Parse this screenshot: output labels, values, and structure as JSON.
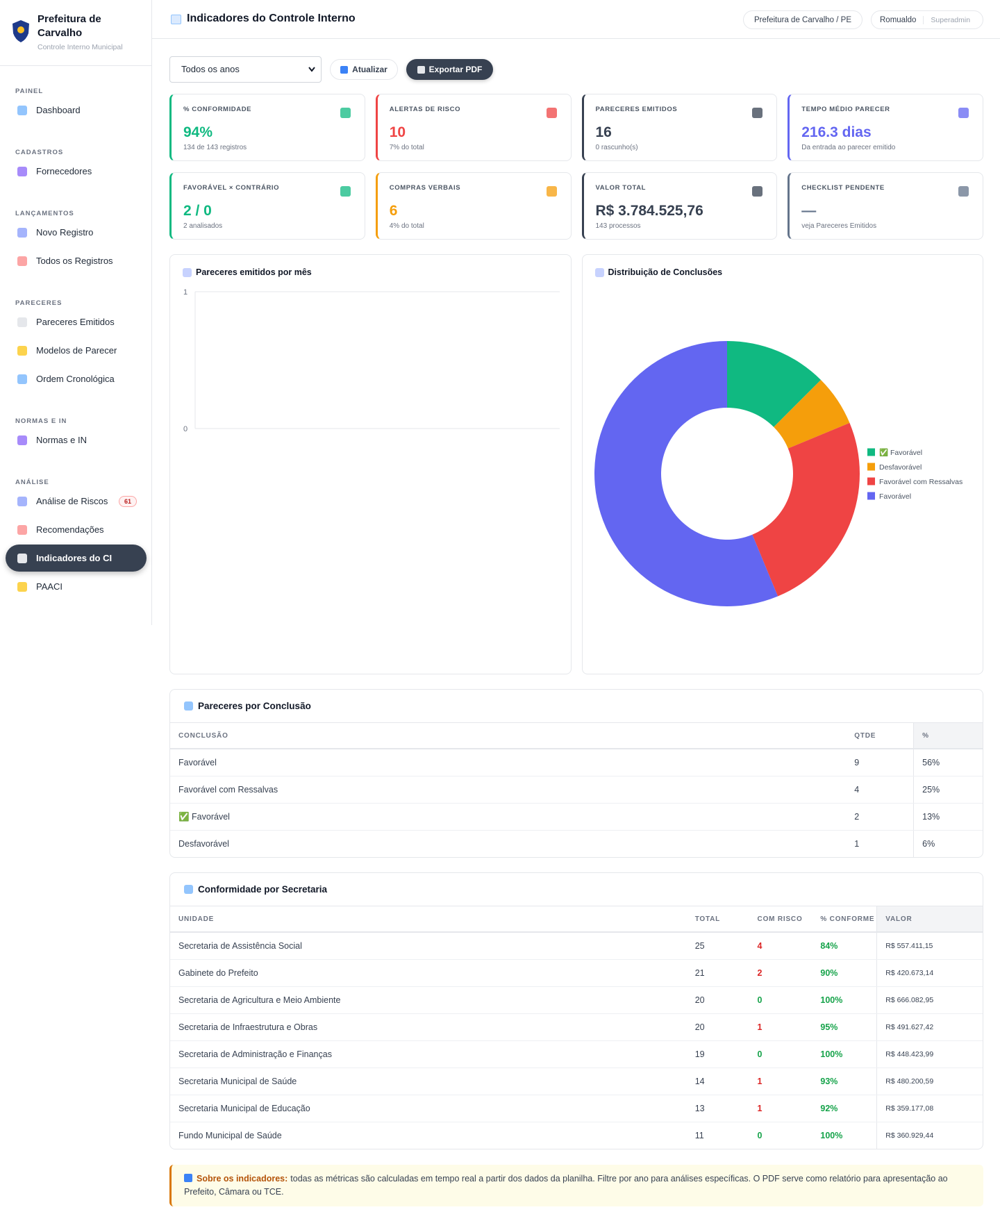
{
  "sidebar": {
    "org": "Prefeitura de Carvalho",
    "subtitle": "Controle Interno Municipal",
    "sections": [
      {
        "title": "PAINEL",
        "items": [
          {
            "label": "Dashboard"
          }
        ]
      },
      {
        "title": "CADASTROS",
        "items": [
          {
            "label": "Fornecedores"
          }
        ]
      },
      {
        "title": "LANÇAMENTOS",
        "items": [
          {
            "label": "Novo Registro"
          },
          {
            "label": "Todos os Registros"
          }
        ]
      },
      {
        "title": "PARECERES",
        "items": [
          {
            "label": "Pareceres Emitidos"
          },
          {
            "label": "Modelos de Parecer"
          },
          {
            "label": "Ordem Cronológica"
          }
        ]
      },
      {
        "title": "NORMAS E IN",
        "items": [
          {
            "label": "Normas e IN"
          }
        ]
      },
      {
        "title": "ANÁLISE",
        "items": [
          {
            "label": "Análise de Riscos",
            "badge": 61
          },
          {
            "label": "Recomendações"
          },
          {
            "label": "Indicadores do CI",
            "active": true
          },
          {
            "label": "PAACI"
          }
        ]
      }
    ]
  },
  "header": {
    "title": "Indicadores do Controle Interno",
    "location": "Prefeitura de Carvalho / PE",
    "user": "Romualdo",
    "role": "Superadmin"
  },
  "toolbar": {
    "filter": "Todos os anos",
    "refresh": "Atualizar",
    "export": "Exportar PDF"
  },
  "kpis": [
    {
      "label": "% CONFORMIDADE",
      "value": "94%",
      "note": "134 de 143 registros",
      "color": "#10b981"
    },
    {
      "label": "ALERTAS DE RISCO",
      "value": "10",
      "note": "7% do total",
      "color": "#ef4444"
    },
    {
      "label": "PARECERES EMITIDOS",
      "value": "16",
      "note": "0 rascunho(s)",
      "color": "#374151"
    },
    {
      "label": "TEMPO MÉDIO PARECER",
      "value": "216.3 dias",
      "note": "Da entrada ao parecer emitido",
      "color": "#6366f1"
    },
    {
      "label": "FAVORÁVEL × CONTRÁRIO",
      "value": "2 / 0",
      "note": "2 analisados",
      "color": "#10b981"
    },
    {
      "label": "COMPRAS VERBAIS",
      "value": "6",
      "note": "4% do total",
      "color": "#f59e0b"
    },
    {
      "label": "VALOR TOTAL",
      "value": "R$ 3.784.525,76",
      "note": "143 processos",
      "color": "#374151"
    },
    {
      "label": "CHECKLIST PENDENTE",
      "value": "—",
      "note": "veja Pareceres Emitidos",
      "color": "#64748b"
    }
  ],
  "chart_data": [
    {
      "type": "line",
      "title": "Pareceres emitidos por mês",
      "ylim": [
        0,
        1
      ],
      "yticks": [
        0,
        1
      ],
      "grid": true
    },
    {
      "type": "doughnut",
      "title": "Distribuição de Conclusões",
      "categories": [
        "✅ Favorável",
        "Desfavorável",
        "Favorável com Ressalvas",
        "Favorável"
      ],
      "values": [
        2,
        1,
        4,
        9
      ],
      "colors": [
        "#10b981",
        "#f59e0b",
        "#ef4444",
        "#6366f1"
      ],
      "legend": "right"
    }
  ],
  "tables": [
    {
      "title": "Pareceres por Conclusão",
      "columns": [
        "CONCLUSÃO",
        "QTDE",
        "%"
      ],
      "rows": [
        [
          "Favorável",
          9,
          "56%"
        ],
        [
          "Favorável com Ressalvas",
          4,
          "25%"
        ],
        [
          "✅ Favorável",
          2,
          "13%"
        ],
        [
          "Desfavorável",
          1,
          "6%"
        ]
      ]
    },
    {
      "title": "Conformidade por Secretaria",
      "columns": [
        "UNIDADE",
        "TOTAL",
        "COM RISCO",
        "% CONFORME",
        "VALOR"
      ],
      "rows": [
        [
          "Secretaria de Assistência Social",
          25,
          4,
          "84%",
          "R$ 557.411,15"
        ],
        [
          "Gabinete do Prefeito",
          21,
          2,
          "90%",
          "R$ 420.673,14"
        ],
        [
          "Secretaria de Agricultura e Meio Ambiente",
          20,
          0,
          "100%",
          "R$ 666.082,95"
        ],
        [
          "Secretaria de Infraestrutura e Obras",
          20,
          1,
          "95%",
          "R$ 491.627,42"
        ],
        [
          "Secretaria de Administração e Finanças",
          19,
          0,
          "100%",
          "R$ 448.423,99"
        ],
        [
          "Secretaria Municipal de Saúde",
          14,
          1,
          "93%",
          "R$ 480.200,59"
        ],
        [
          "Secretaria Municipal de Educação",
          13,
          1,
          "92%",
          "R$ 359.177,08"
        ],
        [
          "Fundo Municipal de Saúde",
          11,
          0,
          "100%",
          "R$ 360.929,44"
        ]
      ]
    }
  ],
  "info": {
    "title": "Sobre os indicadores:",
    "text": "todas as métricas são calculadas em tempo real a partir dos dados da planilha. Filtre por ano para análises específicas. O PDF serve como relatório para apresentação ao Prefeito, Câmara ou TCE."
  }
}
